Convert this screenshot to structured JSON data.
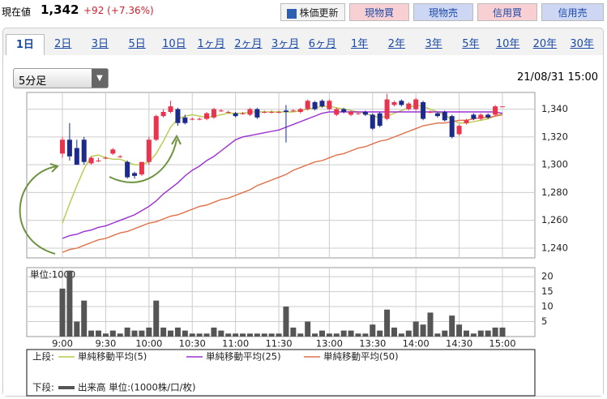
{
  "header": {
    "label": "現在値",
    "price": "1,342",
    "change": "+92 (+7.36%)"
  },
  "buttons": [
    "株価更新",
    "現物買",
    "現物売",
    "信用買",
    "信用売"
  ],
  "tabs": [
    "1日",
    "2日",
    "3日",
    "5日",
    "10日",
    "1ヶ月",
    "2ヶ月",
    "3ヶ月",
    "6ヶ月",
    "1年",
    "2年",
    "3年",
    "5年",
    "10年",
    "20年",
    "30年"
  ],
  "interval": "5分足",
  "timestamp": "21/08/31 15:00",
  "legend": {
    "upper": "上段:",
    "lower": "下段:",
    "volume": "出来高 単位:(1000株/口/枚)"
  },
  "chart_data": [
    {
      "type": "candlestick",
      "up_color": "#e8344e",
      "down_color": "#1c2a8c",
      "grid": true,
      "open": [
        1308,
        1318,
        1312,
        1318,
        1301,
        1303,
        1305,
        1308,
        1306,
        1302,
        1294,
        1293,
        1302,
        1318,
        1335,
        1338,
        1340,
        1334,
        1333,
        1333,
        1333,
        1334,
        1339,
        1338,
        1337,
        1337,
        1336,
        1340,
        1338,
        1338,
        1338,
        1339,
        1339,
        1338,
        1340,
        1345,
        1346,
        1340,
        1336,
        1340,
        1336,
        1337,
        1338,
        1336,
        1337,
        1333,
        1343,
        1346,
        1340,
        1340,
        1345,
        1338,
        1337,
        1338,
        1335,
        1322,
        1330,
        1336,
        1333,
        1336,
        1336,
        1342
      ],
      "high": [
        1320,
        1330,
        1318,
        1320,
        1306,
        1305,
        1306,
        1312,
        1307,
        1303,
        1295,
        1302,
        1320,
        1336,
        1340,
        1346,
        1341,
        1336,
        1334,
        1334,
        1338,
        1341,
        1340,
        1339,
        1338,
        1338,
        1341,
        1341,
        1339,
        1339,
        1339,
        1343,
        1340,
        1341,
        1347,
        1346,
        1347,
        1347,
        1341,
        1341,
        1339,
        1338,
        1339,
        1337,
        1338,
        1351,
        1346,
        1347,
        1345,
        1348,
        1346,
        1339,
        1338,
        1339,
        1336,
        1329,
        1333,
        1337,
        1337,
        1337,
        1343,
        1342
      ],
      "low": [
        1305,
        1303,
        1300,
        1300,
        1300,
        1302,
        1304,
        1307,
        1305,
        1290,
        1290,
        1292,
        1300,
        1317,
        1334,
        1337,
        1328,
        1329,
        1332,
        1332,
        1332,
        1333,
        1338,
        1337,
        1334,
        1336,
        1335,
        1333,
        1337,
        1337,
        1337,
        1316,
        1338,
        1337,
        1339,
        1339,
        1341,
        1339,
        1335,
        1337,
        1335,
        1336,
        1335,
        1325,
        1327,
        1332,
        1342,
        1342,
        1339,
        1339,
        1332,
        1337,
        1334,
        1331,
        1319,
        1321,
        1329,
        1332,
        1332,
        1333,
        1335,
        1342
      ],
      "close": [
        1318,
        1306,
        1300,
        1302,
        1305,
        1303,
        1305,
        1311,
        1306,
        1291,
        1292,
        1302,
        1318,
        1335,
        1338,
        1342,
        1330,
        1330,
        1333,
        1333,
        1337,
        1340,
        1339,
        1338,
        1335,
        1337,
        1340,
        1334,
        1338,
        1338,
        1338,
        1338,
        1339,
        1340,
        1346,
        1340,
        1342,
        1346,
        1340,
        1338,
        1338,
        1337,
        1336,
        1326,
        1328,
        1347,
        1345,
        1343,
        1344,
        1347,
        1333,
        1338,
        1335,
        1332,
        1320,
        1328,
        1332,
        1333,
        1336,
        1334,
        1342,
        1342
      ],
      "series": [
        {
          "name": "単純移動平均(5)",
          "color": "#b9c94c",
          "values": [
            1258,
            1272,
            1285,
            1297,
            1306,
            1307,
            1305,
            1304,
            1304,
            1302,
            1300,
            1300,
            1302,
            1308,
            1317,
            1327,
            1333,
            1335,
            1336,
            1335,
            1334,
            1335,
            1336,
            1337,
            1337,
            1337,
            1338,
            1338,
            1338,
            1338,
            1338,
            1338,
            1338,
            1339,
            1340,
            1341,
            1342,
            1342,
            1341,
            1340,
            1339,
            1338,
            1337,
            1335,
            1334,
            1335,
            1337,
            1339,
            1341,
            1343,
            1342,
            1340,
            1338,
            1336,
            1332,
            1330,
            1330,
            1331,
            1332,
            1333,
            1335,
            1337
          ]
        },
        {
          "name": "単純移動平均(25)",
          "color": "#9b30d0",
          "values": [
            1247,
            1249,
            1250,
            1252,
            1253,
            1255,
            1256,
            1258,
            1260,
            1262,
            1264,
            1267,
            1270,
            1274,
            1279,
            1283,
            1287,
            1292,
            1296,
            1299,
            1303,
            1306,
            1310,
            1314,
            1318,
            1320,
            1321,
            1322,
            1323,
            1324,
            1325,
            1327,
            1329,
            1331,
            1333,
            1335,
            1337,
            1338,
            1338,
            1338,
            1338,
            1338,
            1338,
            1338,
            1338,
            1338,
            1338,
            1338,
            1338,
            1338,
            1338,
            1338,
            1338,
            1338,
            1338,
            1338,
            1338,
            1338,
            1338,
            1338,
            1338,
            1337
          ]
        },
        {
          "name": "単純移動平均(50)",
          "color": "#e07048",
          "values": [
            1237,
            1239,
            1240,
            1242,
            1244,
            1246,
            1247,
            1249,
            1251,
            1252,
            1254,
            1256,
            1258,
            1259,
            1261,
            1263,
            1264,
            1266,
            1268,
            1270,
            1271,
            1273,
            1275,
            1276,
            1278,
            1280,
            1282,
            1285,
            1287,
            1289,
            1291,
            1293,
            1296,
            1298,
            1300,
            1302,
            1303,
            1305,
            1307,
            1308,
            1310,
            1312,
            1313,
            1315,
            1317,
            1318,
            1320,
            1322,
            1324,
            1326,
            1328,
            1329,
            1330,
            1330,
            1331,
            1332,
            1332,
            1333,
            1334,
            1334,
            1335,
            1336
          ]
        }
      ],
      "ylim": [
        1233,
        1352
      ],
      "yticks": [
        {
          "value": 1240,
          "label": "1,240"
        },
        {
          "value": 1260,
          "label": "1,260"
        },
        {
          "value": 1280,
          "label": "1,280"
        },
        {
          "value": 1300,
          "label": "1,300"
        },
        {
          "value": 1320,
          "label": "1,320"
        },
        {
          "value": 1340,
          "label": "1,340"
        }
      ]
    },
    {
      "type": "bar",
      "color": "#555555",
      "grid": true,
      "annotation": "単位:1000",
      "categories": [
        "9:00",
        null,
        null,
        null,
        null,
        null,
        "9:30",
        null,
        null,
        null,
        null,
        null,
        "10:00",
        null,
        null,
        null,
        null,
        null,
        "10:30",
        null,
        null,
        null,
        null,
        null,
        "11:00",
        null,
        null,
        null,
        null,
        null,
        "11:30",
        null,
        null,
        null,
        null,
        null,
        null,
        "13:00",
        null,
        null,
        null,
        null,
        null,
        "13:30",
        null,
        null,
        null,
        null,
        null,
        "14:00",
        null,
        null,
        null,
        null,
        null,
        "14:30",
        null,
        null,
        null,
        null,
        null,
        "15:00"
      ],
      "values": [
        16,
        22,
        5,
        12,
        2,
        2,
        1,
        2,
        1,
        3,
        2,
        2,
        3,
        12,
        3,
        2,
        3,
        2,
        1,
        1,
        1,
        3,
        2,
        1,
        1,
        1,
        1,
        1,
        1,
        1,
        1,
        10,
        3,
        1,
        5,
        1,
        2,
        1,
        1,
        2,
        2,
        1,
        1,
        4,
        2,
        9,
        3,
        1,
        2,
        5,
        4,
        8,
        1,
        2,
        7,
        4,
        2,
        1,
        2,
        2,
        3,
        3
      ],
      "ylim": [
        0,
        23
      ],
      "yticks": [
        5,
        10,
        15,
        20
      ]
    }
  ]
}
